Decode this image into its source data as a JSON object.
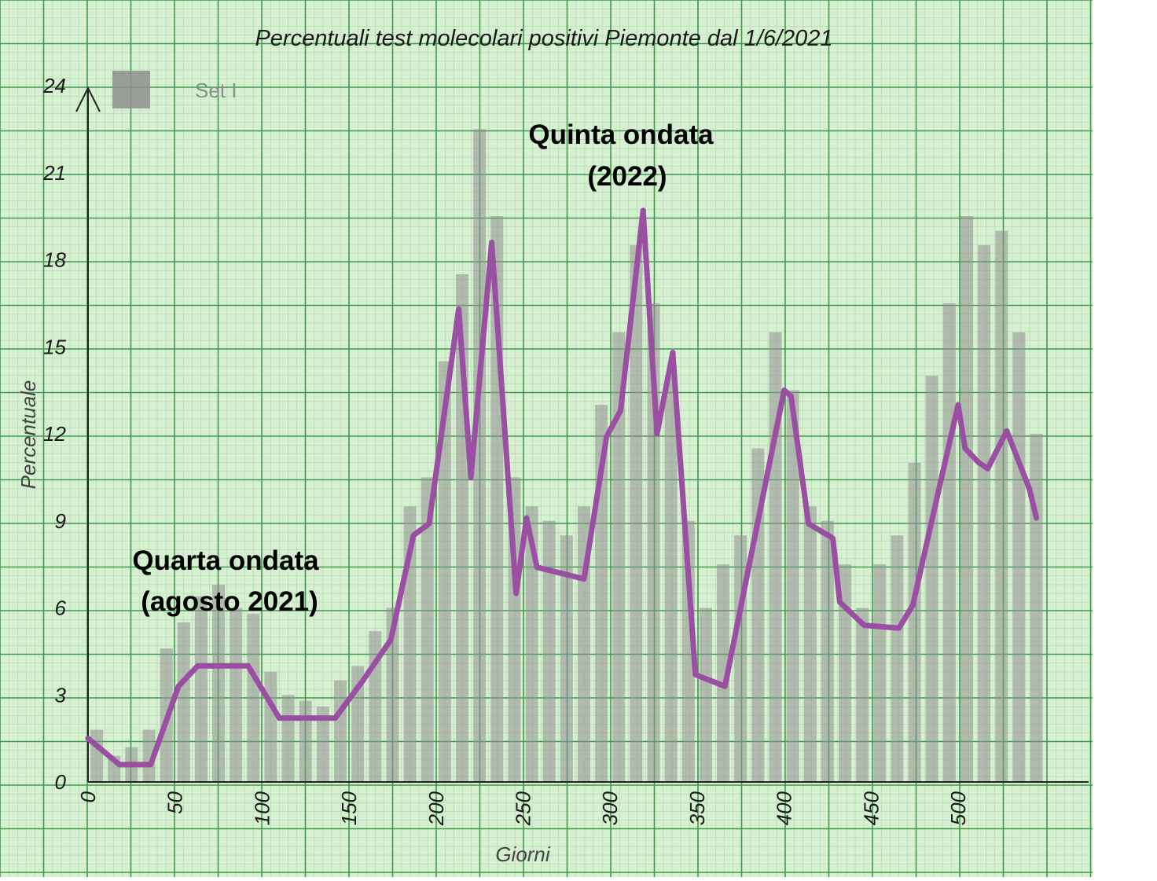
{
  "chart_data": {
    "type": "line",
    "title": "Percentuali test molecolari positivi Piemonte dal 1/6/2021",
    "xlabel": "Giorni",
    "ylabel": "Percentuale",
    "xlim": [
      0,
      575
    ],
    "ylim": [
      0,
      24
    ],
    "x_ticks": [
      "0",
      "50",
      "100",
      "150",
      "200",
      "250",
      "300",
      "350",
      "400",
      "450",
      "500"
    ],
    "y_ticks": [
      "0",
      "3",
      "6",
      "9",
      "12",
      "15",
      "18",
      "21",
      "24"
    ],
    "grid": true,
    "legend": {
      "placement": "top-left",
      "entries": [
        "Set I"
      ]
    },
    "annotations": [
      {
        "text": "Quarta ondata",
        "x": 88,
        "y": 7.6
      },
      {
        "text": "(agosto 2021)",
        "x": 92,
        "y": 6.2
      },
      {
        "text": "Quinta ondata",
        "x": 308,
        "y": 22.0
      },
      {
        "text": "(2022)",
        "x": 310,
        "y": 20.6
      }
    ],
    "series": [
      {
        "name": "",
        "style": "line",
        "color": "#9b4fa3",
        "x": [
          0,
          18,
          36,
          52,
          63,
          78,
          92,
          110,
          125,
          142,
          158,
          174,
          187,
          196,
          213,
          220,
          232,
          246,
          252,
          258,
          285,
          298,
          306,
          319,
          327,
          336,
          349,
          366,
          400,
          404,
          414,
          428,
          432,
          446,
          466,
          474,
          489,
          500,
          504,
          512,
          517,
          528,
          541,
          545
        ],
        "y": [
          1.5,
          0.6,
          0.6,
          3.3,
          4.0,
          4.0,
          4.0,
          2.2,
          2.2,
          2.2,
          3.5,
          4.9,
          8.5,
          8.9,
          16.3,
          10.5,
          18.6,
          6.5,
          9.1,
          7.4,
          7.0,
          11.9,
          12.8,
          19.7,
          12.0,
          14.8,
          3.7,
          3.3,
          13.5,
          13.3,
          8.9,
          8.4,
          6.2,
          5.4,
          5.3,
          6.1,
          10.1,
          13.0,
          11.5,
          11.0,
          10.8,
          12.1,
          10.1,
          9.1
        ]
      },
      {
        "name": "Set I",
        "style": "bars",
        "color": "#8f8f8f",
        "x": [
          5,
          15,
          25,
          35,
          45,
          55,
          65,
          75,
          85,
          95,
          105,
          115,
          125,
          135,
          145,
          155,
          165,
          175,
          185,
          195,
          205,
          215,
          225,
          235,
          245,
          255,
          265,
          275,
          285,
          295,
          305,
          315,
          325,
          335,
          345,
          355,
          365,
          375,
          385,
          395,
          405,
          415,
          425,
          435,
          445,
          455,
          465,
          475,
          485,
          495,
          505,
          515,
          525,
          535,
          545
        ],
        "y": [
          1.8,
          0.9,
          1.2,
          1.8,
          4.6,
          5.5,
          6.4,
          6.8,
          6.0,
          5.8,
          3.8,
          3.0,
          2.8,
          2.6,
          3.5,
          4.0,
          5.2,
          6.0,
          9.5,
          10.5,
          14.5,
          17.5,
          22.5,
          19.5,
          10.5,
          9.5,
          9.0,
          8.5,
          9.5,
          13.0,
          15.5,
          18.5,
          16.5,
          14.0,
          9.0,
          6.0,
          7.5,
          8.5,
          11.5,
          15.5,
          13.5,
          9.5,
          9.0,
          7.5,
          6.0,
          7.5,
          8.5,
          11.0,
          14.0,
          16.5,
          19.5,
          18.5,
          19.0,
          15.5,
          12.0
        ]
      }
    ]
  }
}
